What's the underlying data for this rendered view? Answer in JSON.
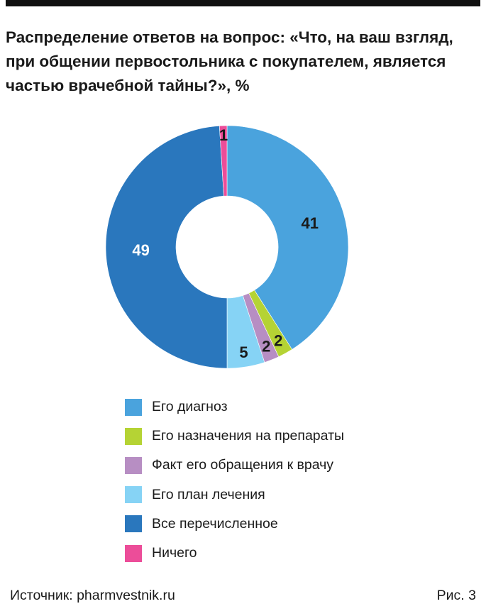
{
  "title": "Распределение ответов на вопрос: «Что, на ваш взгляд, при общении первостольника с покупателем, является частью врачебной тайны?», %",
  "source": "Источник: pharmvestnik.ru",
  "figure_label": "Рис. 3",
  "chart_data": {
    "type": "pie",
    "variant": "donut",
    "categories": [
      "Его диагноз",
      "Его назначения на препараты",
      "Факт его обращения к врачу",
      "Его план лечения",
      "Все перечисленное",
      "Ничего"
    ],
    "values": [
      41,
      2,
      2,
      5,
      49,
      1
    ],
    "labels": [
      "41",
      "2",
      "2",
      "5",
      "49",
      "1"
    ],
    "colors": [
      "#4aa3dd",
      "#b5d334",
      "#b78ec3",
      "#86d3f5",
      "#2a77bd",
      "#ec4d99"
    ],
    "label_colors": [
      "#1a1a1a",
      "#1a1a1a",
      "#1a1a1a",
      "#1a1a1a",
      "#ffffff",
      "#1a1a1a"
    ],
    "unit": "%",
    "start": "12 o'clock",
    "direction": "clockwise",
    "legend_position": "bottom"
  }
}
